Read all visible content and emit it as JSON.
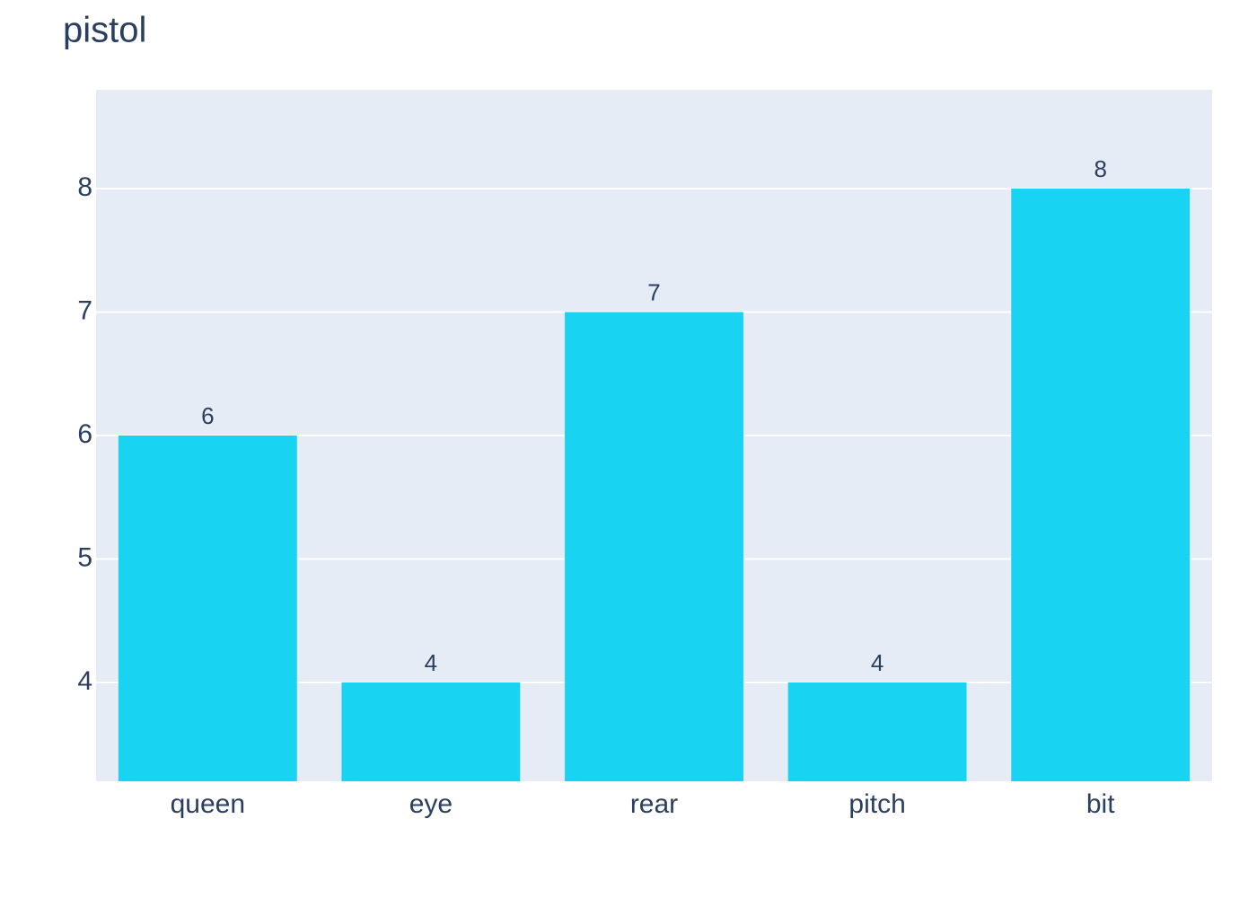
{
  "chart_data": {
    "type": "bar",
    "title": "pistol",
    "categories": [
      "queen",
      "eye",
      "rear",
      "pitch",
      "bit"
    ],
    "values": [
      6,
      4,
      7,
      4,
      8
    ],
    "color": "#19d3f3",
    "ylim": [
      3.2,
      8.8
    ],
    "yticks": [
      4,
      5,
      6,
      7,
      8
    ],
    "grid": true
  }
}
